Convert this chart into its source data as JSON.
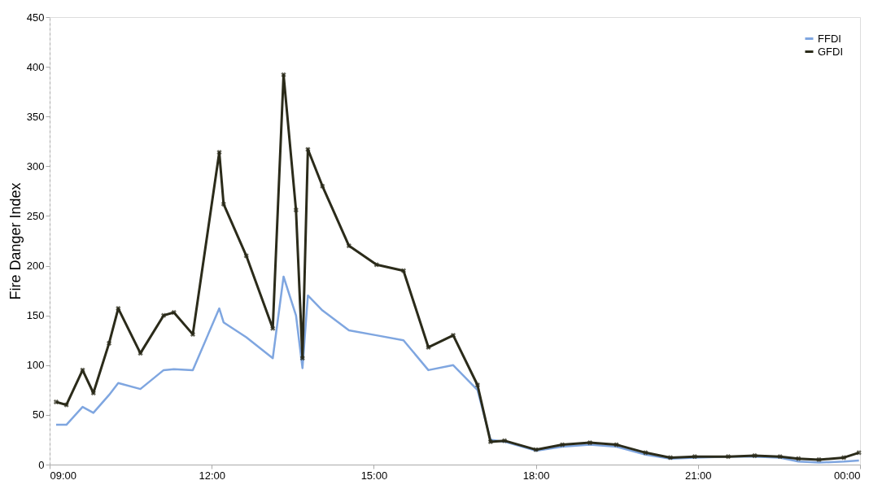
{
  "chart_data": {
    "type": "line",
    "ylabel": "Fire Danger Index",
    "x": [
      9.12,
      9.31,
      9.61,
      9.81,
      10.1,
      10.27,
      10.68,
      11.11,
      11.3,
      11.65,
      12.14,
      12.22,
      12.64,
      13.13,
      13.33,
      13.56,
      13.68,
      13.78,
      14.05,
      14.54,
      15.05,
      15.55,
      16.01,
      16.47,
      16.92,
      17.16,
      17.42,
      18.0,
      18.49,
      19.0,
      19.49,
      20.03,
      20.49,
      20.94,
      21.56,
      22.05,
      22.52,
      22.86,
      23.24,
      23.7,
      23.98
    ],
    "series": [
      {
        "name": "FFDI",
        "color": "#7fa6e0",
        "marker": "none",
        "values": [
          40,
          40,
          58,
          52,
          70,
          82,
          76,
          95,
          96,
          95,
          157,
          143,
          128,
          107,
          189,
          150,
          97,
          170,
          155,
          135,
          130,
          125,
          95,
          100,
          75,
          25,
          23,
          14,
          18,
          20,
          18,
          10,
          6,
          7,
          8,
          8,
          7,
          3,
          2,
          3,
          4
        ]
      },
      {
        "name": "GFDI",
        "color": "#2b2b1a",
        "marker": "cross",
        "values": [
          63,
          60,
          95,
          72,
          122,
          157,
          112,
          150,
          153,
          131,
          314,
          262,
          210,
          137,
          392,
          256,
          107,
          317,
          280,
          220,
          201,
          195,
          118,
          130,
          80,
          23,
          24,
          15,
          20,
          22,
          20,
          12,
          7,
          8,
          8,
          9,
          8,
          6,
          5,
          7,
          12
        ]
      }
    ],
    "xlim": [
      9,
      24
    ],
    "xticks": [
      {
        "value": 9,
        "label": "09:00"
      },
      {
        "value": 12,
        "label": "12:00"
      },
      {
        "value": 15,
        "label": "15:00"
      },
      {
        "value": 18,
        "label": "18:00"
      },
      {
        "value": 21,
        "label": "21:00"
      },
      {
        "value": 24,
        "label": "00:00"
      }
    ],
    "ylim": [
      0,
      450
    ],
    "yticks": [
      0,
      50,
      100,
      150,
      200,
      250,
      300,
      350,
      400,
      450
    ],
    "grid": false,
    "legend": "top right",
    "line_style": "solid"
  }
}
